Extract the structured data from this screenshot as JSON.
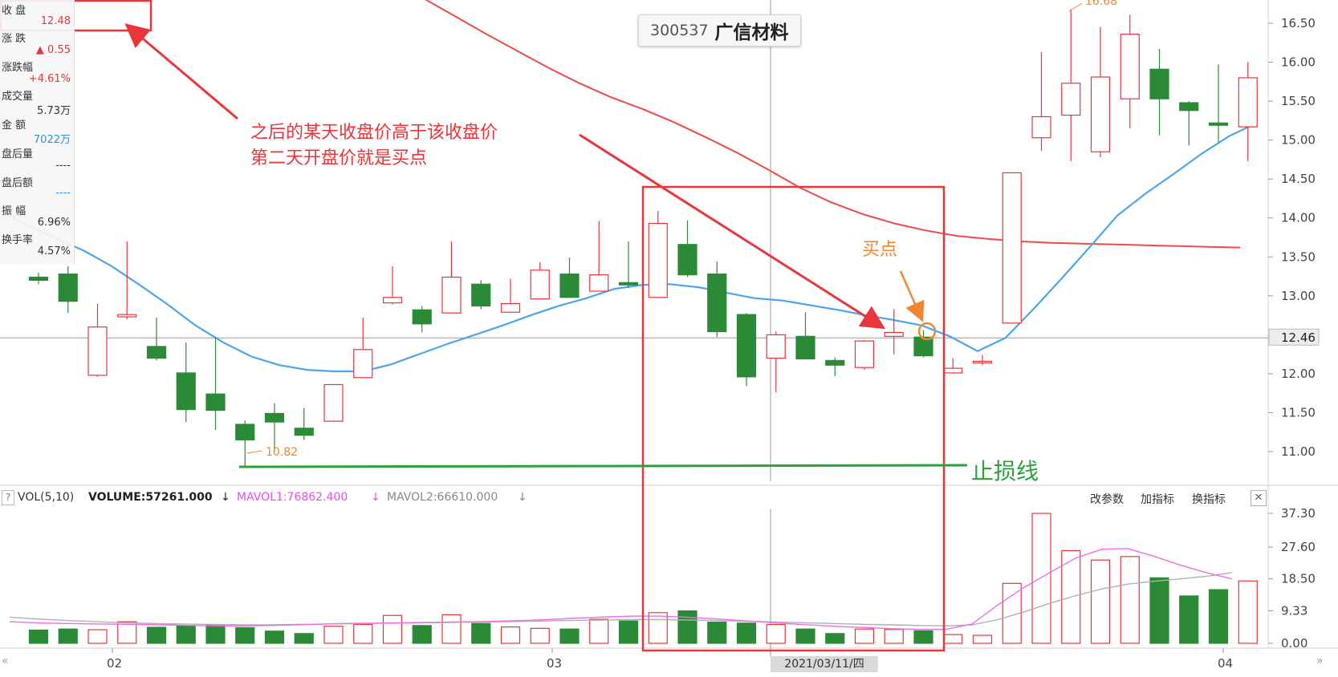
{
  "title": {
    "code": "300537",
    "name": "广信材料"
  },
  "info_panel": {
    "items": [
      {
        "label": "收 盘",
        "value": "12.48",
        "color": "#e8363a"
      },
      {
        "label": "涨 跌",
        "value": "▲ 0.55",
        "color": "#e8363a"
      },
      {
        "label": "涨跌幅",
        "value": "+4.61%",
        "color": "#e8363a"
      },
      {
        "label": "成交量",
        "value": "5.73万",
        "color": "#333333"
      },
      {
        "label": "金 额",
        "value": "7022万",
        "color": "#2f8ee0"
      },
      {
        "label": "盘后量",
        "value": "----",
        "color": "#333333"
      },
      {
        "label": "盘后额",
        "value": "----",
        "color": "#2f8ee0"
      },
      {
        "label": "振 幅",
        "value": "6.96%",
        "color": "#333333"
      },
      {
        "label": "换手率",
        "value": "4.57%",
        "color": "#333333"
      }
    ]
  },
  "annotations": {
    "note_line1": "之后的某天收盘价高于该收盘价",
    "note_line2": "第二天开盘价就是买点",
    "buy_point": "买点",
    "stop_loss": "止损线",
    "low_marker": "10.82",
    "high_marker": "16.68"
  },
  "price_axis": {
    "ticks": [
      "16.50",
      "16.00",
      "15.50",
      "15.00",
      "14.50",
      "14.00",
      "13.50",
      "13.00",
      "12.50",
      "12.00",
      "11.50",
      "11.00"
    ],
    "current_price": "12.46"
  },
  "volume_bar": {
    "indicator": "VOL(5,10)",
    "volume": "VOLUME:57261.000",
    "mavol1": "MAVOL1:76862.400",
    "mavol2": "MAVOL2:66610.000",
    "tools": [
      "改参数",
      "加指标",
      "换指标"
    ],
    "close": "✕",
    "help": "?"
  },
  "volume_axis": {
    "ticks": [
      "37.30",
      "27.60",
      "18.50",
      "9.33",
      "0.00"
    ]
  },
  "date_axis": {
    "labels": [
      "02",
      "03",
      "04"
    ],
    "crosshair_date": "2021/03/11/四"
  },
  "colors": {
    "up": "#e8363a",
    "down": "#2a8a36",
    "ma_short": "#4aa5ef",
    "ma_long": "#ee4a4a",
    "mavol1": "#ee6ee8",
    "mavol2": "#b0b0b0",
    "annotation": "#e8363a",
    "buy": "#f0862f",
    "stop_loss": "#2ba23b"
  },
  "chart_data": {
    "type": "candlestick",
    "price_range": [
      10.6,
      16.9
    ],
    "volume_unit": "万",
    "volume_range": [
      0,
      42
    ],
    "candles": [
      {
        "o": 13.24,
        "c": 13.2,
        "h": 13.3,
        "l": 13.15,
        "v": 3.8
      },
      {
        "o": 13.28,
        "c": 12.93,
        "h": 13.38,
        "l": 12.78,
        "v": 4.1
      },
      {
        "o": 11.98,
        "c": 12.6,
        "h": 12.9,
        "l": 11.96,
        "v": 3.9
      },
      {
        "o": 12.73,
        "c": 12.76,
        "h": 13.7,
        "l": 12.7,
        "v": 6.2
      },
      {
        "o": 12.35,
        "c": 12.2,
        "h": 12.72,
        "l": 12.17,
        "v": 4.6
      },
      {
        "o": 12.01,
        "c": 11.54,
        "h": 12.4,
        "l": 11.38,
        "v": 5.1
      },
      {
        "o": 11.74,
        "c": 11.53,
        "h": 12.47,
        "l": 11.28,
        "v": 5.3
      },
      {
        "o": 11.35,
        "c": 11.15,
        "h": 11.4,
        "l": 10.82,
        "v": 4.5
      },
      {
        "o": 11.49,
        "c": 11.38,
        "h": 11.62,
        "l": 11.0,
        "v": 3.5
      },
      {
        "o": 11.3,
        "c": 11.21,
        "h": 11.56,
        "l": 11.15,
        "v": 2.8
      },
      {
        "o": 11.39,
        "c": 11.86,
        "h": 11.86,
        "l": 11.39,
        "v": 4.9
      },
      {
        "o": 11.95,
        "c": 12.31,
        "h": 12.72,
        "l": 11.95,
        "v": 5.4
      },
      {
        "o": 12.91,
        "c": 12.98,
        "h": 13.38,
        "l": 12.89,
        "v": 8.0
      },
      {
        "o": 12.82,
        "c": 12.64,
        "h": 12.87,
        "l": 12.53,
        "v": 5.1
      },
      {
        "o": 12.78,
        "c": 13.24,
        "h": 13.7,
        "l": 12.78,
        "v": 8.2
      },
      {
        "o": 13.15,
        "c": 12.87,
        "h": 13.2,
        "l": 12.83,
        "v": 5.7
      },
      {
        "o": 12.79,
        "c": 12.9,
        "h": 13.22,
        "l": 12.79,
        "v": 4.7
      },
      {
        "o": 12.96,
        "c": 13.33,
        "h": 13.43,
        "l": 12.96,
        "v": 4.3
      },
      {
        "o": 13.28,
        "c": 12.98,
        "h": 13.49,
        "l": 12.98,
        "v": 4.1
      },
      {
        "o": 13.06,
        "c": 13.27,
        "h": 13.96,
        "l": 13.06,
        "v": 6.9
      },
      {
        "o": 13.17,
        "c": 13.14,
        "h": 13.7,
        "l": 13.1,
        "v": 6.4
      },
      {
        "o": 12.98,
        "c": 13.93,
        "h": 14.09,
        "l": 12.98,
        "v": 8.8
      },
      {
        "o": 13.66,
        "c": 13.27,
        "h": 13.97,
        "l": 13.24,
        "v": 9.3
      },
      {
        "o": 13.28,
        "c": 12.54,
        "h": 13.44,
        "l": 12.47,
        "v": 6.1
      },
      {
        "o": 12.76,
        "c": 11.96,
        "h": 12.78,
        "l": 11.84,
        "v": 5.8
      },
      {
        "o": 12.2,
        "c": 12.5,
        "h": 12.54,
        "l": 11.76,
        "v": 5.4
      },
      {
        "o": 12.48,
        "c": 12.19,
        "h": 12.79,
        "l": 12.19,
        "v": 4.1
      },
      {
        "o": 12.17,
        "c": 12.11,
        "h": 12.21,
        "l": 11.97,
        "v": 2.8
      },
      {
        "o": 12.08,
        "c": 12.42,
        "h": 12.43,
        "l": 12.05,
        "v": 4.1
      },
      {
        "o": 12.48,
        "c": 12.53,
        "h": 12.83,
        "l": 12.25,
        "v": 4.0
      },
      {
        "o": 12.47,
        "c": 12.23,
        "h": 12.56,
        "l": 12.21,
        "v": 3.6
      },
      {
        "o": 12.01,
        "c": 12.07,
        "h": 12.2,
        "l": 12.0,
        "v": 2.5
      },
      {
        "o": 12.15,
        "c": 12.16,
        "h": 12.24,
        "l": 12.11,
        "v": 2.3
      },
      {
        "o": 12.65,
        "c": 14.58,
        "h": 14.58,
        "l": 12.65,
        "v": 17.2
      },
      {
        "o": 15.03,
        "c": 15.3,
        "h": 16.13,
        "l": 14.86,
        "v": 37.3
      },
      {
        "o": 15.32,
        "c": 15.73,
        "h": 16.68,
        "l": 14.73,
        "v": 26.6
      },
      {
        "o": 14.85,
        "c": 15.81,
        "h": 16.45,
        "l": 14.78,
        "v": 23.9
      },
      {
        "o": 15.53,
        "c": 16.36,
        "h": 16.61,
        "l": 15.15,
        "v": 24.9
      },
      {
        "o": 15.91,
        "c": 15.53,
        "h": 16.17,
        "l": 15.06,
        "v": 18.8
      },
      {
        "o": 15.48,
        "c": 15.38,
        "h": 15.5,
        "l": 14.93,
        "v": 13.6
      },
      {
        "o": 15.22,
        "c": 15.19,
        "h": 15.97,
        "l": 14.97,
        "v": 15.4
      },
      {
        "o": 15.17,
        "c": 15.8,
        "h": 16.0,
        "l": 14.73,
        "v": 17.9
      }
    ],
    "ma_short": [
      14.1,
      13.9,
      13.74,
      13.58,
      13.38,
      13.14,
      12.89,
      12.62,
      12.4,
      12.22,
      12.11,
      12.05,
      12.03,
      12.03,
      12.12,
      12.25,
      12.38,
      12.5,
      12.62,
      12.75,
      12.87,
      12.97,
      13.09,
      13.14,
      13.15,
      13.11,
      13.04,
      12.97,
      12.94,
      12.88,
      12.82,
      12.75,
      12.69,
      12.62,
      12.48,
      12.29,
      12.46,
      12.83,
      13.22,
      13.62,
      14.03,
      14.31,
      14.56,
      14.82,
      15.05,
      15.22
    ],
    "ma_long": [
      17.91,
      17.7,
      17.48,
      17.26,
      17.05,
      16.83,
      16.6,
      16.37,
      16.15,
      15.93,
      15.73,
      15.55,
      15.4,
      15.23,
      15.04,
      14.84,
      14.62,
      14.39,
      14.2,
      14.05,
      13.93,
      13.84,
      13.77,
      13.73,
      13.7,
      13.68,
      13.67,
      13.66,
      13.65,
      13.64,
      13.63,
      13.62
    ],
    "mavol1": [
      6.2,
      5.9,
      5.7,
      5.6,
      5.5,
      5.4,
      5.3,
      5.1,
      5.0,
      5.0,
      5.1,
      5.3,
      5.5,
      5.7,
      5.8,
      5.9,
      6.0,
      6.1,
      6.2,
      6.4,
      6.6,
      6.9,
      7.3,
      7.6,
      7.8,
      7.8,
      7.5,
      7.1,
      6.6,
      6.1,
      5.6,
      5.2,
      4.8,
      4.5,
      4.2,
      4.0,
      4.0,
      5.5,
      11.0,
      16.0,
      20.3,
      24.5,
      27.0,
      27.2,
      25.0,
      22.5,
      20.3,
      18.5
    ],
    "mavol2": [
      7.5,
      7.0,
      6.6,
      6.3,
      6.0,
      5.8,
      5.6,
      5.5,
      5.4,
      5.3,
      5.3,
      5.4,
      5.5,
      5.6,
      5.7,
      5.8,
      5.9,
      6.0,
      6.1,
      6.2,
      6.3,
      6.5,
      6.6,
      6.7,
      6.8,
      6.8,
      6.7,
      6.6,
      6.4,
      6.2,
      6.0,
      5.8,
      5.6,
      5.4,
      5.3,
      5.1,
      5.0,
      5.3,
      6.8,
      9.0,
      11.5,
      13.7,
      15.6,
      17.0,
      17.8,
      18.5,
      19.2,
      20.3
    ]
  }
}
